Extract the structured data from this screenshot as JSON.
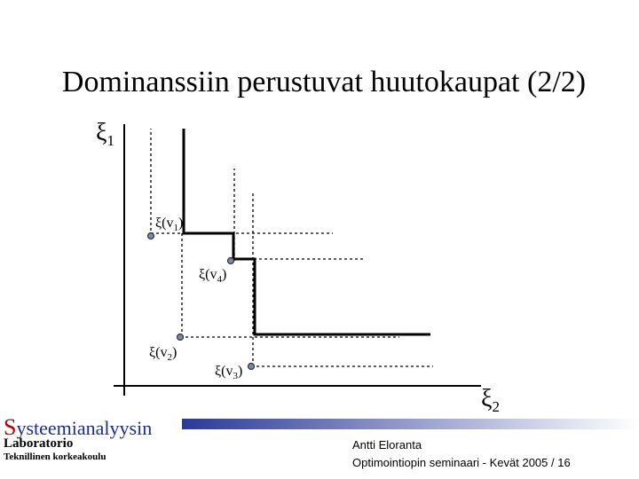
{
  "title": "Dominanssiin perustuvat huutokaupat (2/2)",
  "axes": {
    "y": {
      "base": "ξ",
      "sub": "1"
    },
    "x": {
      "base": "ξ",
      "sub": "2"
    }
  },
  "points": [
    {
      "base": "ξ(v",
      "sub": "1",
      "end": ")"
    },
    {
      "base": "ξ(v",
      "sub": "4",
      "end": ")"
    },
    {
      "base": "ξ(v",
      "sub": "2",
      "end": ")"
    },
    {
      "base": "ξ(v",
      "sub": "3",
      "end": ")"
    }
  ],
  "footer": {
    "logo_initial": "S",
    "logo_rest": "ysteemianalyysin",
    "logo_line2": "Laboratorio",
    "logo_line3": "Teknillinen korkeakoulu",
    "author": "Antti Eloranta",
    "course": "Optimointiopin seminaari - Kevät 2005 / 16"
  }
}
